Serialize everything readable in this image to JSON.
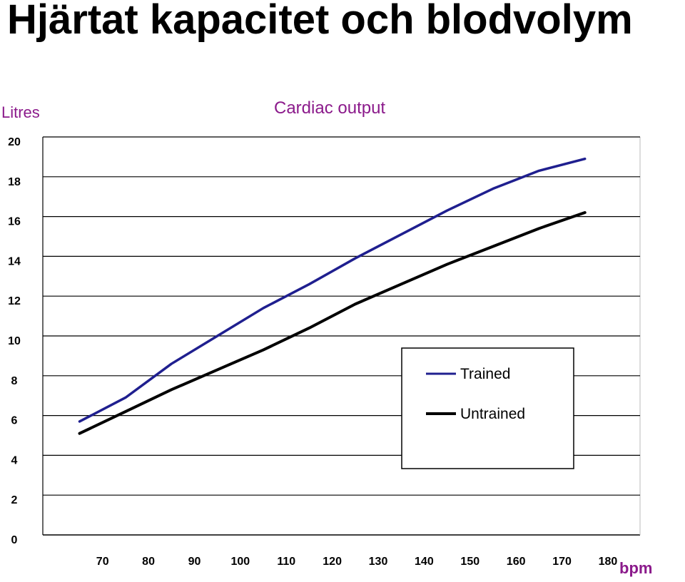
{
  "slide": {
    "title": "Hjärtat kapacitet och blodvolym"
  },
  "chart_data": {
    "type": "line",
    "title": "Cardiac output",
    "ylabel": "Litres",
    "xlabel": "bpm",
    "xlim": [
      57,
      187
    ],
    "ylim": [
      0,
      20
    ],
    "x_ticks": [
      70,
      80,
      90,
      100,
      110,
      120,
      130,
      140,
      150,
      160,
      170,
      180
    ],
    "y_ticks": [
      0,
      2,
      4,
      6,
      8,
      10,
      12,
      14,
      16,
      18,
      20
    ],
    "grid": true,
    "legend_position": "bottom-right",
    "series": [
      {
        "name": "Trained",
        "color": "#1f1f8f",
        "points": [
          [
            65,
            5.7
          ],
          [
            75,
            6.9
          ],
          [
            85,
            8.6
          ],
          [
            95,
            10.0
          ],
          [
            105,
            11.4
          ],
          [
            115,
            12.6
          ],
          [
            125,
            13.9
          ],
          [
            135,
            15.1
          ],
          [
            145,
            16.3
          ],
          [
            155,
            17.4
          ],
          [
            165,
            18.3
          ],
          [
            175,
            18.9
          ]
        ]
      },
      {
        "name": "Untrained",
        "color": "#000000",
        "points": [
          [
            65,
            5.1
          ],
          [
            75,
            6.2
          ],
          [
            85,
            7.3
          ],
          [
            95,
            8.3
          ],
          [
            105,
            9.3
          ],
          [
            115,
            10.4
          ],
          [
            125,
            11.6
          ],
          [
            135,
            12.6
          ],
          [
            145,
            13.6
          ],
          [
            155,
            14.5
          ],
          [
            165,
            15.4
          ],
          [
            175,
            16.2
          ]
        ]
      }
    ]
  }
}
